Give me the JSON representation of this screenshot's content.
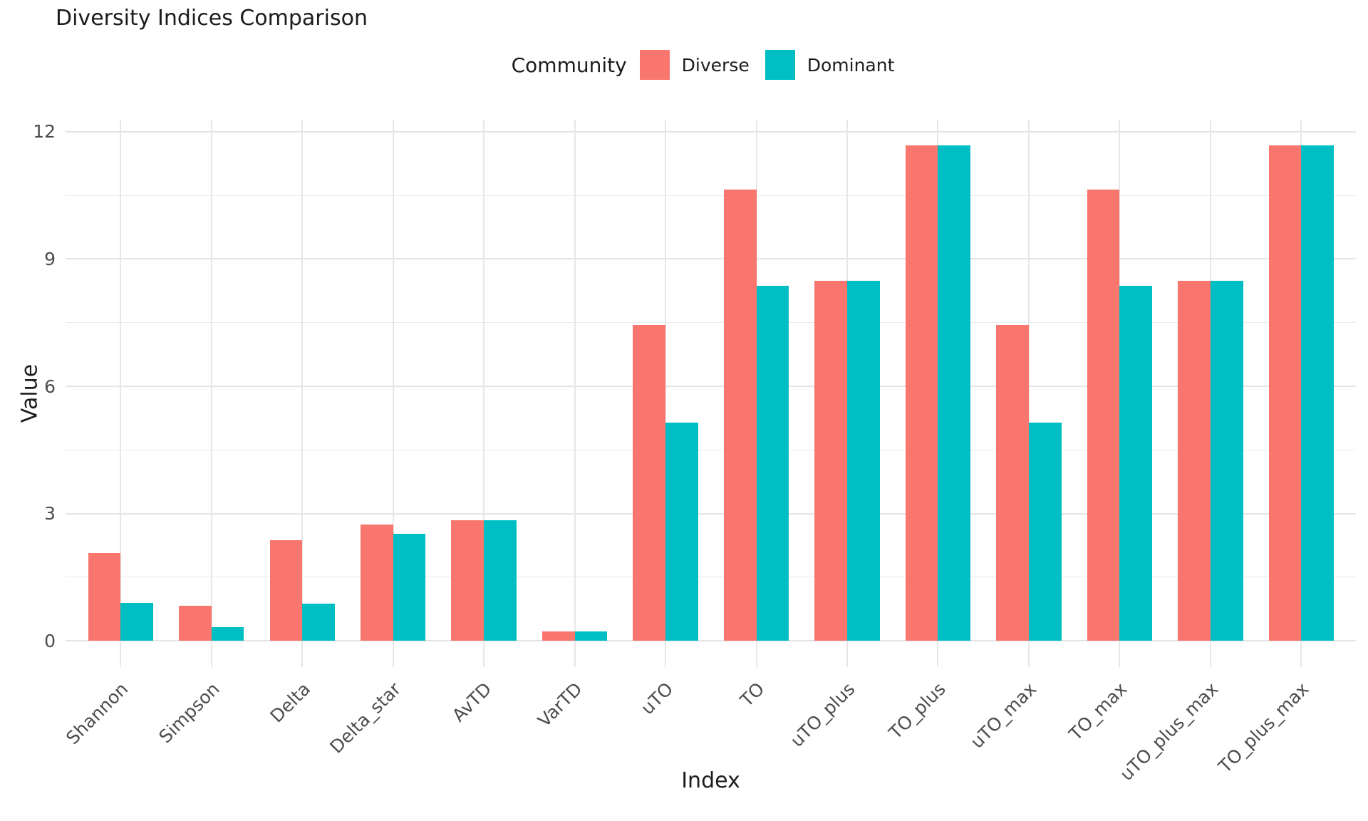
{
  "title": "Diversity Indices Comparison",
  "legend": {
    "title": "Community",
    "entries": [
      {
        "label": "Diverse",
        "color": "#F8766D"
      },
      {
        "label": "Dominant",
        "color": "#00BFC4"
      }
    ]
  },
  "axes": {
    "x_title": "Index",
    "y_title": "Value",
    "y_tick_labels": [
      "0",
      "3",
      "6",
      "9",
      "12"
    ]
  },
  "chart_data": {
    "type": "bar",
    "title": "Diversity Indices Comparison",
    "xlabel": "Index",
    "ylabel": "Value",
    "categories": [
      "Shannon",
      "Simpson",
      "Delta",
      "Delta_star",
      "AvTD",
      "VarTD",
      "uTO",
      "TO",
      "uTO_plus",
      "TO_plus",
      "uTO_max",
      "TO_max",
      "uTO_plus_max",
      "TO_plus_max"
    ],
    "series": [
      {
        "name": "Diverse",
        "color": "#F8766D",
        "values": [
          2.07,
          0.83,
          2.37,
          2.74,
          2.84,
          0.22,
          7.45,
          10.64,
          8.49,
          11.68,
          7.45,
          10.64,
          8.49,
          11.68
        ]
      },
      {
        "name": "Dominant",
        "color": "#00BFC4",
        "values": [
          0.9,
          0.33,
          0.88,
          2.52,
          2.84,
          0.22,
          5.15,
          8.36,
          8.49,
          11.68,
          5.15,
          8.36,
          8.49,
          11.68
        ]
      }
    ],
    "ylim": [
      0,
      12.3
    ],
    "y_major_ticks": [
      0,
      3,
      6,
      9,
      12
    ],
    "y_minor_ticks": [
      1.5,
      4.5,
      7.5,
      10.5
    ],
    "grid": "major+minor horizontal, major vertical at category centers",
    "legend_position": "top-center",
    "legend_title": "Community",
    "bar_grouping": "dodged"
  }
}
